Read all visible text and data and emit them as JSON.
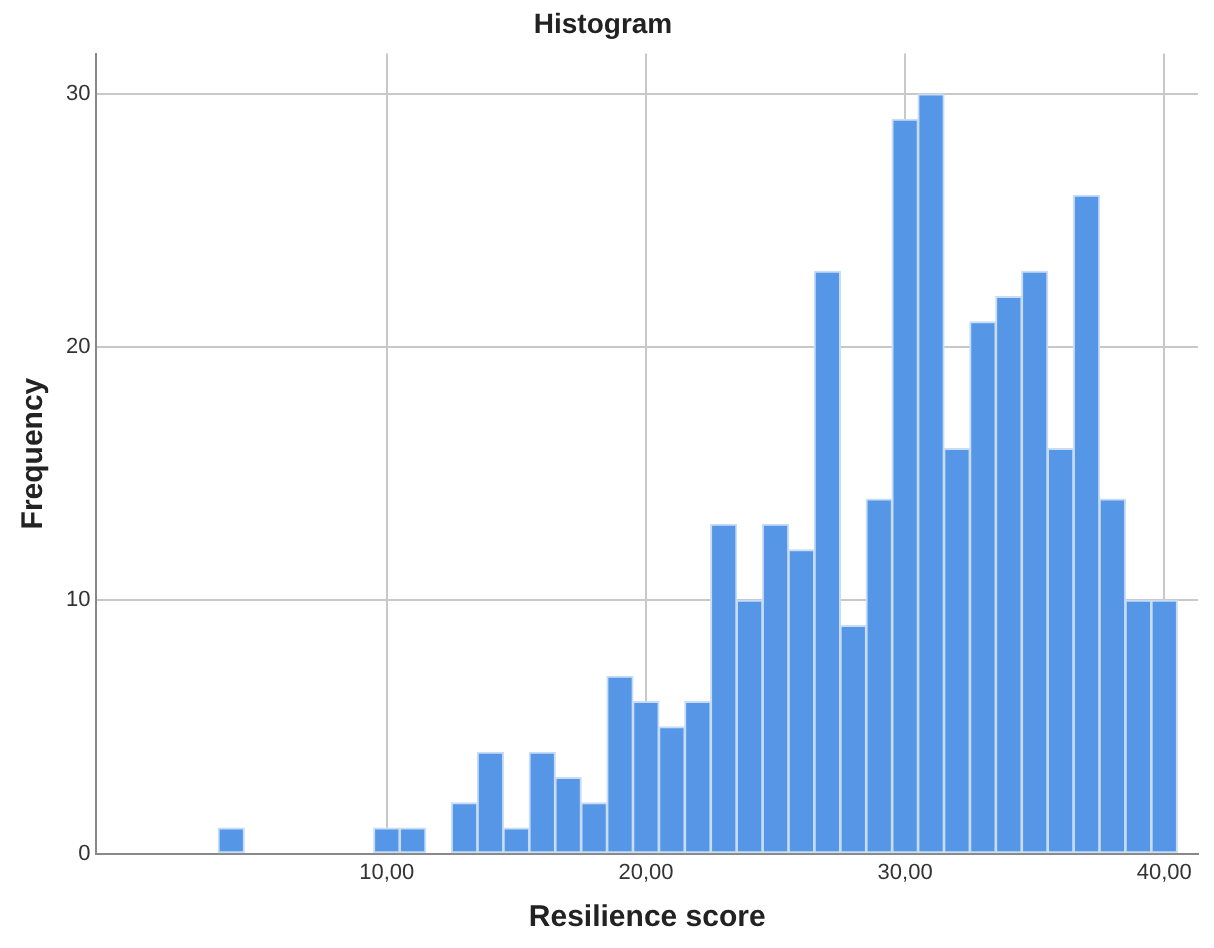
{
  "chart_data": {
    "type": "histogram",
    "title": "Histogram",
    "xlabel": "Resilience score",
    "ylabel": "Frequency",
    "bins": [
      3.5,
      4.5,
      5.5,
      6.5,
      7.5,
      8.5,
      9.5,
      10.5,
      11.5,
      12.5,
      13.5,
      14.5,
      15.5,
      16.5,
      17.5,
      18.5,
      19.5,
      20.5,
      21.5,
      22.5,
      23.5,
      24.5,
      25.5,
      26.5,
      27.5,
      28.5,
      29.5,
      30.5,
      31.5,
      32.5,
      33.5,
      34.5,
      35.5,
      36.5,
      37.5,
      38.5,
      39.5,
      40.5
    ],
    "values": [
      1,
      0,
      0,
      0,
      0,
      0,
      1,
      1,
      0,
      2,
      4,
      1,
      4,
      3,
      2,
      7,
      6,
      5,
      6,
      13,
      10,
      13,
      12,
      23,
      9,
      14,
      29,
      30,
      16,
      21,
      22,
      23,
      16,
      26,
      14,
      10,
      10
    ],
    "color": "#5596e6",
    "xlim": [
      -1.2,
      41.3
    ],
    "xticks": [
      {
        "value": 10,
        "label": "10,00"
      },
      {
        "value": 20,
        "label": "20,00"
      },
      {
        "value": 30,
        "label": "30,00"
      },
      {
        "value": 40,
        "label": "40,00"
      }
    ],
    "ylim": [
      0,
      31.6
    ],
    "yticks": [
      0,
      10,
      20,
      30
    ],
    "grid": true
  }
}
